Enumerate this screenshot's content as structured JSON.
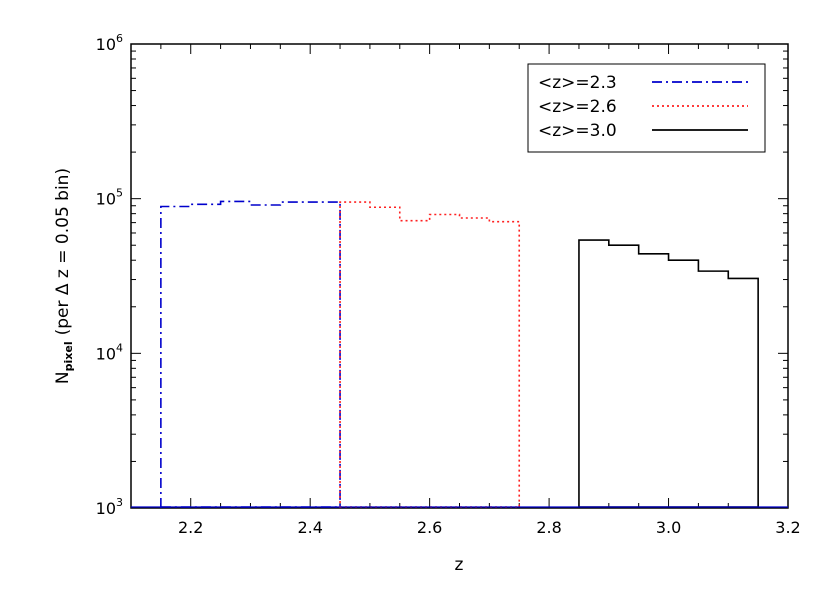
{
  "chart_data": {
    "type": "line",
    "title": "",
    "xlabel": "z",
    "ylabel_main": "N",
    "ylabel_sub": "pixel",
    "ylabel_tail": "(per Δ z = 0.05 bin)",
    "xlim": [
      2.1,
      3.2
    ],
    "ylim": [
      1000,
      1000000
    ],
    "yscale": "log",
    "grid": false,
    "legend_position": "top-right",
    "x_ticks": [
      "2.2",
      "2.4",
      "2.6",
      "2.8",
      "3.0",
      "3.2"
    ],
    "x_tick_values": [
      2.2,
      2.4,
      2.6,
      2.8,
      3.0,
      3.2
    ],
    "y_ticks": [
      {
        "value": 1000,
        "base": "10",
        "exp": "3"
      },
      {
        "value": 10000,
        "base": "10",
        "exp": "4"
      },
      {
        "value": 100000,
        "base": "10",
        "exp": "5"
      },
      {
        "value": 1000000,
        "base": "10",
        "exp": "6"
      }
    ],
    "series": [
      {
        "name": "<z>=2.3",
        "color": "#0000cc",
        "dash": "dashdot",
        "bin_edges": [
          2.15,
          2.2,
          2.25,
          2.3,
          2.35,
          2.4,
          2.45
        ],
        "values": [
          89000,
          92000,
          96000,
          91000,
          95000,
          95000
        ]
      },
      {
        "name": "<z>=2.6",
        "color": "#ff2020",
        "dash": "dotted",
        "bin_edges": [
          2.45,
          2.5,
          2.55,
          2.6,
          2.65,
          2.7,
          2.75
        ],
        "values": [
          95000,
          88000,
          72000,
          79000,
          75000,
          71000
        ]
      },
      {
        "name": "<z>=3.0",
        "color": "#000000",
        "dash": "solid",
        "bin_edges": [
          2.85,
          2.9,
          2.95,
          3.0,
          3.05,
          3.1,
          3.15
        ],
        "values": [
          54000,
          50000,
          44000,
          40000,
          34000,
          30500
        ]
      }
    ]
  }
}
